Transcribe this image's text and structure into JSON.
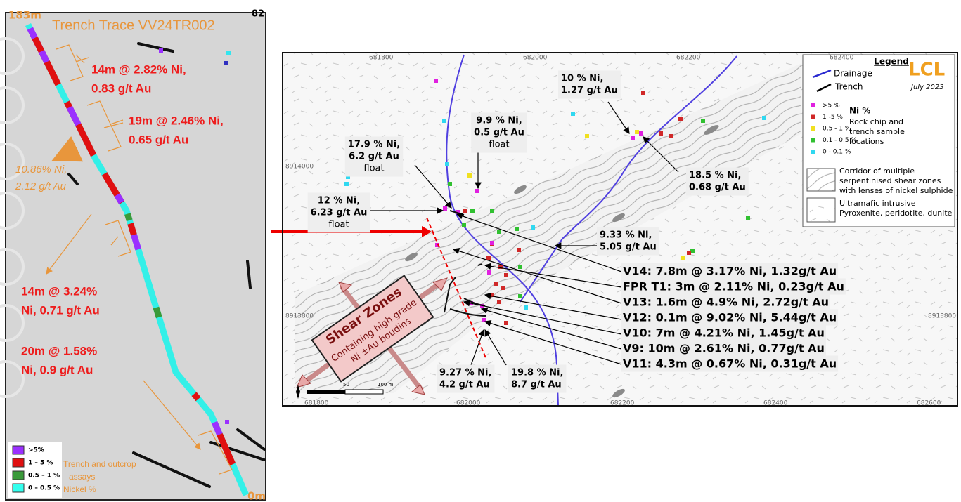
{
  "left_panel": {
    "top_label": "183m",
    "title": "Trench Trace VV24TR002",
    "corner_label": "82",
    "bottom_label": "0m",
    "annotations": [
      [
        "14m @ 2.82% Ni,",
        "0.83 g/t Au"
      ],
      [
        "19m @ 2.46% Ni,",
        "0.65 g/t Au"
      ],
      [
        "14m @ 3.24%",
        "Ni, 0.71 g/t Au"
      ],
      [
        "20m @ 1.58%",
        "Ni, 0.9 g/t Au"
      ]
    ],
    "float_annotation": [
      "10.86% Ni,",
      "2.12 g/t Au"
    ],
    "legend": {
      "items": [
        ">5%",
        "1 – 5 %",
        "0.5 – 1 %",
        "0 – 0.5 %"
      ],
      "caption": [
        "Trench and outcrop",
        "assays",
        "Nickel %"
      ]
    }
  },
  "map": {
    "x_labels_top": [
      681800,
      682000,
      682200,
      682400
    ],
    "x_labels_bottom": [
      681800,
      682000,
      682200,
      682400,
      682600
    ],
    "y_labels_left": [
      8914000,
      8913800
    ],
    "y_labels_right": [
      8913800
    ],
    "legend": {
      "title": "Legend",
      "drainage": "Drainage",
      "trench": "Trench",
      "logo": "LCL",
      "date": "July 2023",
      "ni_title": "Ni %",
      "ni_items": [
        ">5 %",
        "1 -5 %",
        "0.5 - 1 %",
        "0.1 - 0.5 %",
        "0 - 0.1 %"
      ],
      "ni_caption": [
        "Rock chip and",
        "trench sample",
        "locations"
      ],
      "corridor": [
        "Corridor of multiple",
        "serpentinised shear zones",
        "with lenses of nickel sulphide"
      ],
      "ultramafic": [
        "Ultramafic intrusive",
        "Pyroxenite, peridotite, dunite"
      ]
    },
    "sample_annotations": [
      [
        "10 % Ni,",
        "1.27 g/t Au"
      ],
      [
        "9.9 % Ni,",
        "0.5 g/t Au",
        "float"
      ],
      [
        "17.9 % Ni,",
        "6.2 g/t Au",
        "float"
      ],
      [
        "18.5 % Ni,",
        "0.68 g/t Au"
      ],
      [
        "12 % Ni,",
        "6.23 g/t Au",
        "float"
      ],
      [
        "9.33 % Ni,",
        "5.05 g/t Au"
      ],
      [
        "9.27 % Ni,",
        "4.2 g/t Au"
      ],
      [
        "19.8 % Ni,",
        "8.7 g/t Au"
      ]
    ],
    "vein_labels": [
      "V14: 7.8m @ 3.17% Ni, 1.32g/t Au",
      "FPR T1: 3m @ 2.11% Ni, 0.23g/t Au",
      "V13: 1.6m @ 4.9% Ni, 2.72g/t Au",
      "V12: 0.1m @ 9.02% Ni, 5.44g/t Au",
      "V10: 7m @ 4.21% Ni, 1.45g/t Au",
      "V9: 10m @ 2.61% Ni, 0.77g/t Au",
      "V11: 4.3m @ 0.67% Ni, 0.31g/t Au"
    ],
    "shear_zones": {
      "title": "Shear Zones",
      "lines": [
        "Containing high grade",
        "Ni ±Au boudins"
      ]
    },
    "scale_bar": [
      "50",
      "100 m"
    ]
  }
}
